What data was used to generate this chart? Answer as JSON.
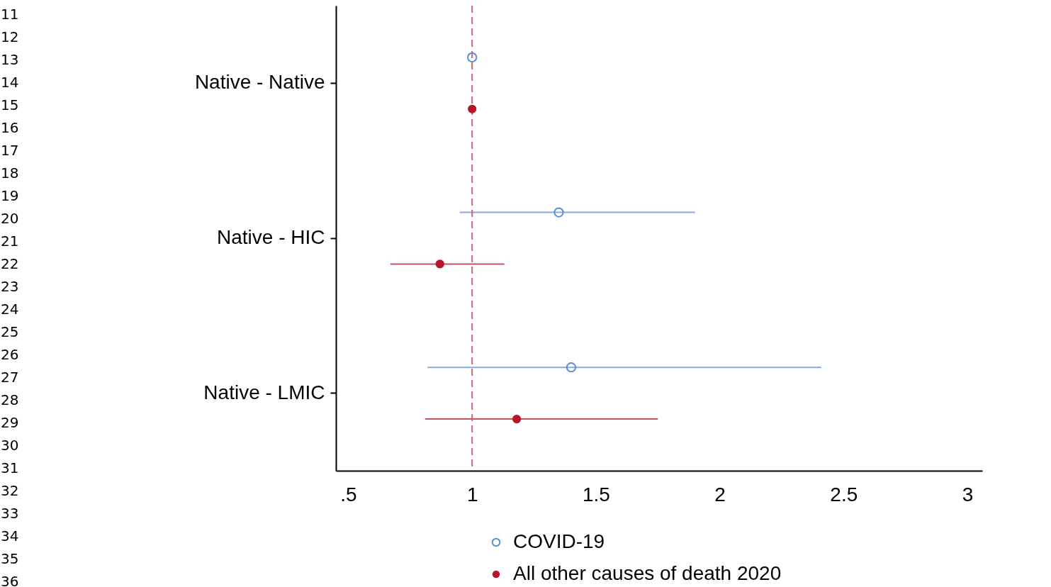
{
  "chart_data": {
    "type": "scatter",
    "orientation": "horizontal",
    "categories": [
      "Native - Native",
      "Native - HIC",
      "Native - LMIC"
    ],
    "series": [
      {
        "name": "COVID-19",
        "color": "#5a8fd4",
        "values": [
          1,
          1.35,
          1.4
        ],
        "errors": [
          null,
          [
            0.95,
            1.9
          ],
          [
            0.82,
            2.41
          ]
        ]
      },
      {
        "name": "All other causes of death 2020",
        "color": "#b5172a",
        "values": [
          1,
          0.87,
          1.18
        ],
        "errors": [
          null,
          [
            0.67,
            1.13
          ],
          [
            0.81,
            1.75
          ]
        ]
      }
    ],
    "xlim": [
      0.45,
      3.06
    ],
    "xticks": [
      {
        "value": 0.5,
        "label": ".5"
      },
      1,
      1.5,
      2,
      2.5,
      3
    ],
    "ref_lines": [
      {
        "axis": "x",
        "value": 1,
        "color": "#d0626f",
        "line_style": "dashed"
      }
    ],
    "marker": "circle",
    "grid": false,
    "legend": "bottom",
    "annotations": [
      "11",
      "12",
      "13",
      "14",
      "15",
      "16",
      "17",
      "18",
      "19",
      "20",
      "21",
      "22",
      "23",
      "24",
      "25",
      "26",
      "27",
      "28",
      "29",
      "30",
      "31",
      "32",
      "33",
      "34",
      "35",
      "36"
    ]
  }
}
